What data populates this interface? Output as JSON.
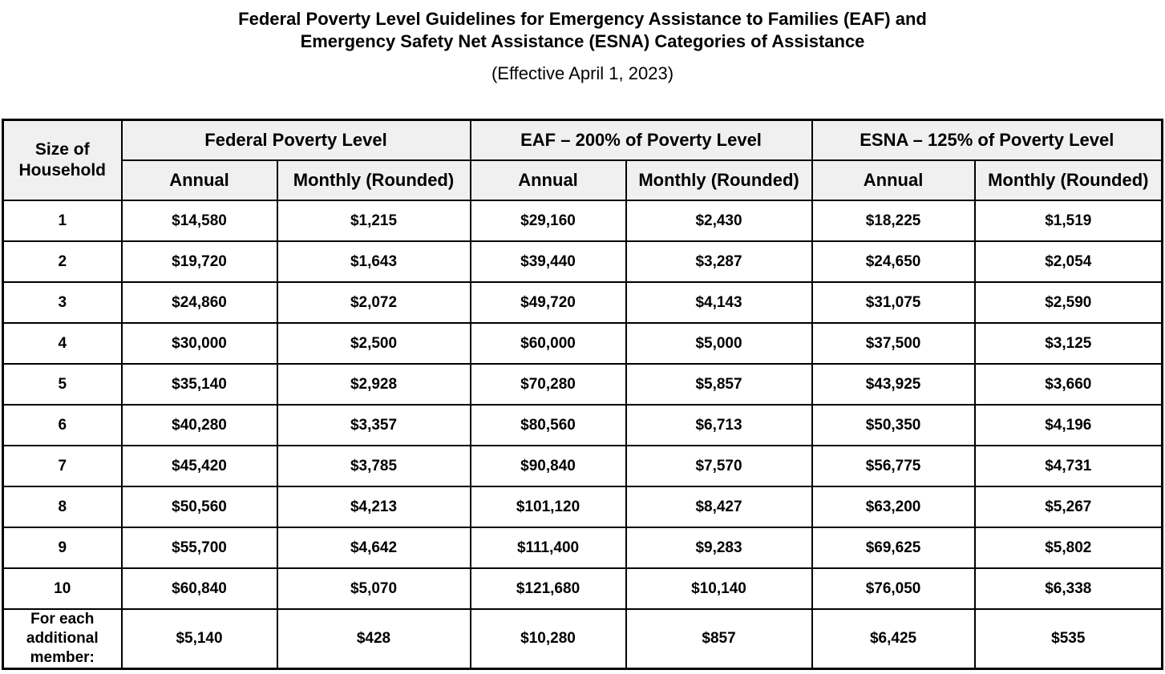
{
  "title": {
    "line1": "Federal Poverty Level Guidelines for Emergency Assistance to Families (EAF) and",
    "line2": "Emergency Safety Net Assistance (ESNA) Categories of Assistance",
    "effective": "(Effective April 1, 2023)"
  },
  "table": {
    "size_header": "Size of Household",
    "groups": [
      {
        "label": "Federal Poverty Level",
        "annual": "Annual",
        "monthly": "Monthly (Rounded)"
      },
      {
        "label": "EAF – 200% of Poverty Level",
        "annual": "Annual",
        "monthly": "Monthly (Rounded)"
      },
      {
        "label": "ESNA – 125% of Poverty Level",
        "annual": "Annual",
        "monthly": "Monthly (Rounded)"
      }
    ],
    "rows": [
      {
        "size": "1",
        "fpl_annual": "$14,580",
        "fpl_monthly": "$1,215",
        "eaf_annual": "$29,160",
        "eaf_monthly": "$2,430",
        "esna_annual": "$18,225",
        "esna_monthly": "$1,519"
      },
      {
        "size": "2",
        "fpl_annual": "$19,720",
        "fpl_monthly": "$1,643",
        "eaf_annual": "$39,440",
        "eaf_monthly": "$3,287",
        "esna_annual": "$24,650",
        "esna_monthly": "$2,054"
      },
      {
        "size": "3",
        "fpl_annual": "$24,860",
        "fpl_monthly": "$2,072",
        "eaf_annual": "$49,720",
        "eaf_monthly": "$4,143",
        "esna_annual": "$31,075",
        "esna_monthly": "$2,590"
      },
      {
        "size": "4",
        "fpl_annual": "$30,000",
        "fpl_monthly": "$2,500",
        "eaf_annual": "$60,000",
        "eaf_monthly": "$5,000",
        "esna_annual": "$37,500",
        "esna_monthly": "$3,125"
      },
      {
        "size": "5",
        "fpl_annual": "$35,140",
        "fpl_monthly": "$2,928",
        "eaf_annual": "$70,280",
        "eaf_monthly": "$5,857",
        "esna_annual": "$43,925",
        "esna_monthly": "$3,660"
      },
      {
        "size": "6",
        "fpl_annual": "$40,280",
        "fpl_monthly": "$3,357",
        "eaf_annual": "$80,560",
        "eaf_monthly": "$6,713",
        "esna_annual": "$50,350",
        "esna_monthly": "$4,196"
      },
      {
        "size": "7",
        "fpl_annual": "$45,420",
        "fpl_monthly": "$3,785",
        "eaf_annual": "$90,840",
        "eaf_monthly": "$7,570",
        "esna_annual": "$56,775",
        "esna_monthly": "$4,731"
      },
      {
        "size": "8",
        "fpl_annual": "$50,560",
        "fpl_monthly": "$4,213",
        "eaf_annual": "$101,120",
        "eaf_monthly": "$8,427",
        "esna_annual": "$63,200",
        "esna_monthly": "$5,267"
      },
      {
        "size": "9",
        "fpl_annual": "$55,700",
        "fpl_monthly": "$4,642",
        "eaf_annual": "$111,400",
        "eaf_monthly": "$9,283",
        "esna_annual": "$69,625",
        "esna_monthly": "$5,802"
      },
      {
        "size": "10",
        "fpl_annual": "$60,840",
        "fpl_monthly": "$5,070",
        "eaf_annual": "$121,680",
        "eaf_monthly": "$10,140",
        "esna_annual": "$76,050",
        "esna_monthly": "$6,338"
      },
      {
        "size": "For each additional member:",
        "fpl_annual": "$5,140",
        "fpl_monthly": "$428",
        "eaf_annual": "$10,280",
        "eaf_monthly": "$857",
        "esna_annual": "$6,425",
        "esna_monthly": "$535"
      }
    ]
  }
}
